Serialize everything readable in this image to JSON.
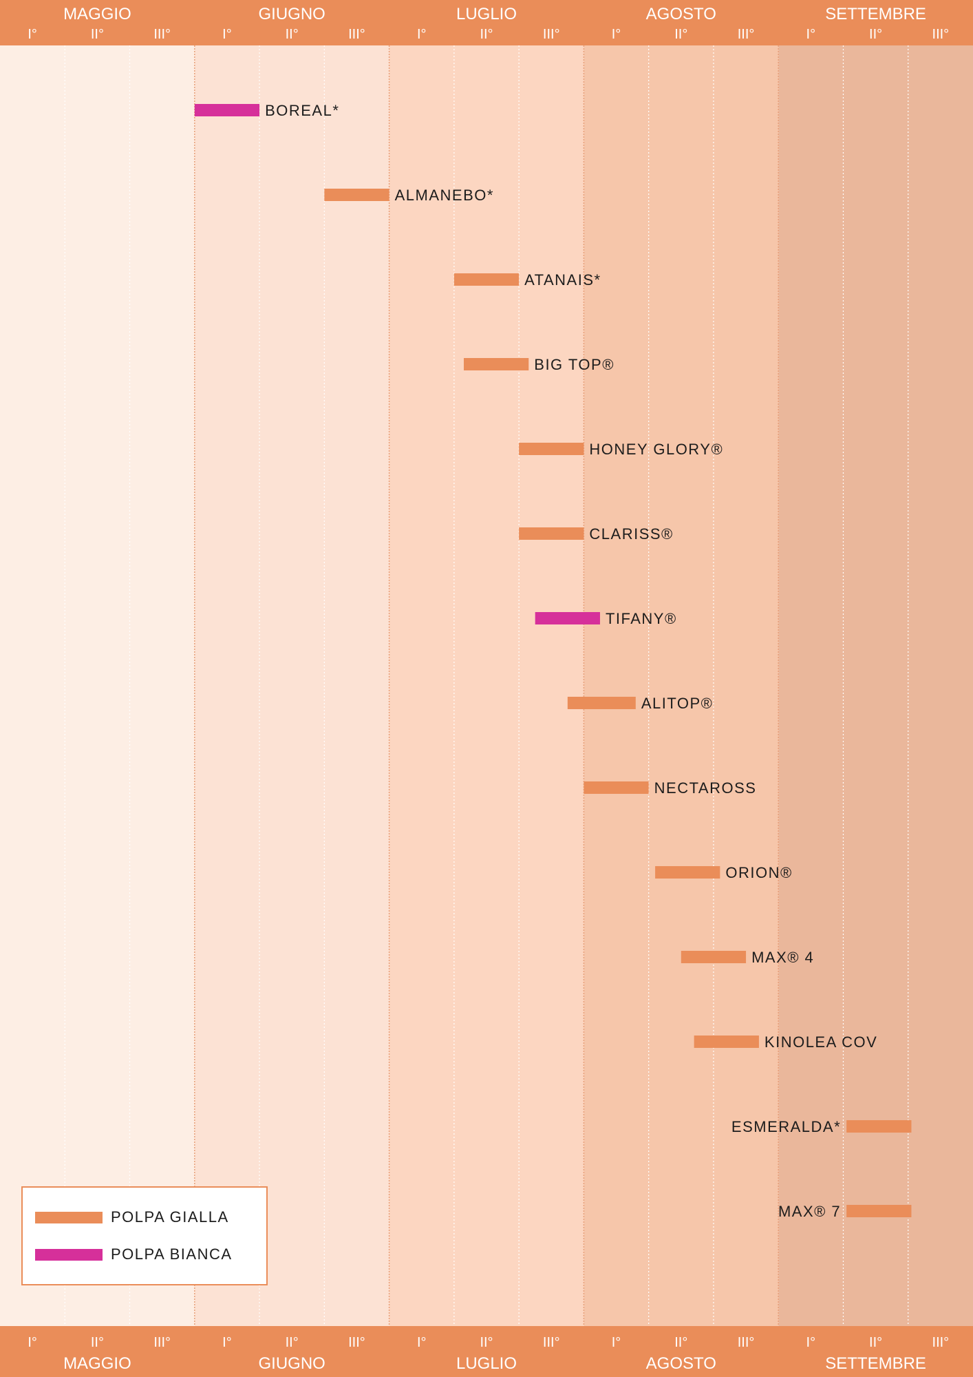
{
  "colors": {
    "header_band": "#ea8d59",
    "polpa_gialla": "#ea8d59",
    "polpa_bianca": "#d6309a",
    "month_backgrounds": [
      "#fdeee4",
      "#fce2d4",
      "#fcd6c1",
      "#f6c6aa",
      "#eab79b"
    ]
  },
  "chart_data": {
    "type": "gantt",
    "months": [
      "MAGGIO",
      "GIUGNO",
      "LUGLIO",
      "AGOSTO",
      "SETTEMBRE"
    ],
    "decades": [
      "I°",
      "II°",
      "III°"
    ],
    "x_unit": "decade index (0 = I° Maggio, 15 = end of III° Settembre)",
    "xlim": [
      0,
      15
    ],
    "series": [
      {
        "name": "POLPA GIALLA",
        "color": "#ea8d59"
      },
      {
        "name": "POLPA BIANCA",
        "color": "#d6309a"
      }
    ],
    "varieties": [
      {
        "name": "BOREAL*",
        "start": 3.0,
        "end": 4.0,
        "series": "POLPA BIANCA",
        "label_side": "right"
      },
      {
        "name": "ALMANEBO*",
        "start": 5.0,
        "end": 6.0,
        "series": "POLPA GIALLA",
        "label_side": "right"
      },
      {
        "name": "ATANAIS*",
        "start": 7.0,
        "end": 8.0,
        "series": "POLPA GIALLA",
        "label_side": "right"
      },
      {
        "name": "BIG TOP®",
        "start": 7.15,
        "end": 8.15,
        "series": "POLPA GIALLA",
        "label_side": "right"
      },
      {
        "name": "HONEY GLORY®",
        "start": 8.0,
        "end": 9.0,
        "series": "POLPA GIALLA",
        "label_side": "right"
      },
      {
        "name": "CLARISS®",
        "start": 8.0,
        "end": 9.0,
        "series": "POLPA GIALLA",
        "label_side": "right"
      },
      {
        "name": "TIFANY®",
        "start": 8.25,
        "end": 9.25,
        "series": "POLPA BIANCA",
        "label_side": "right"
      },
      {
        "name": "ALITOP®",
        "start": 8.75,
        "end": 9.8,
        "series": "POLPA GIALLA",
        "label_side": "right"
      },
      {
        "name": "NECTAROSS",
        "start": 9.0,
        "end": 10.0,
        "series": "POLPA GIALLA",
        "label_side": "right"
      },
      {
        "name": "ORION®",
        "start": 10.1,
        "end": 11.1,
        "series": "POLPA GIALLA",
        "label_side": "right"
      },
      {
        "name": "MAX® 4",
        "start": 10.5,
        "end": 11.5,
        "series": "POLPA GIALLA",
        "label_side": "right"
      },
      {
        "name": "KINOLEA COV",
        "start": 10.7,
        "end": 11.7,
        "series": "POLPA GIALLA",
        "label_side": "right"
      },
      {
        "name": "ESMERALDA*",
        "start": 13.05,
        "end": 14.05,
        "series": "POLPA GIALLA",
        "label_side": "left"
      },
      {
        "name": "MAX® 7",
        "start": 13.05,
        "end": 14.05,
        "series": "POLPA GIALLA",
        "label_side": "left"
      }
    ]
  },
  "legend": {
    "items": [
      {
        "label": "POLPA GIALLA",
        "color": "#ea8d59"
      },
      {
        "label": "POLPA BIANCA",
        "color": "#d6309a"
      }
    ]
  }
}
